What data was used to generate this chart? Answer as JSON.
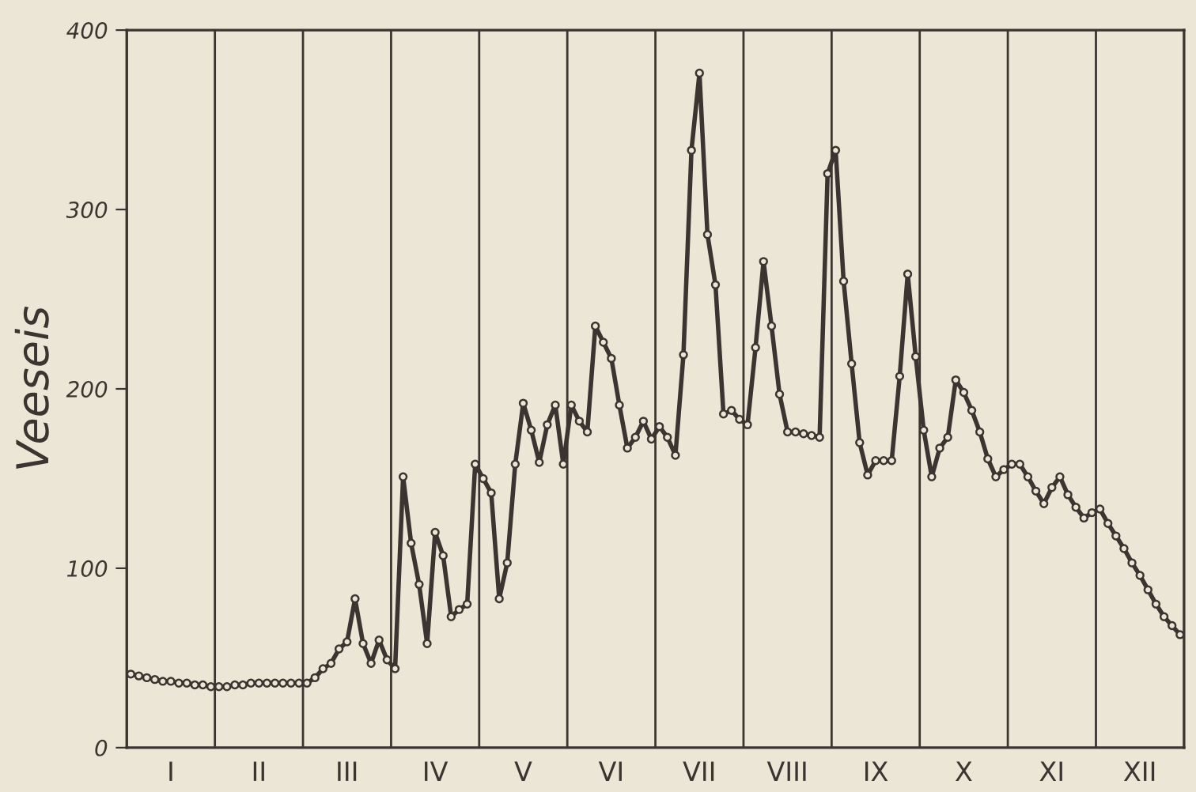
{
  "chart_data": {
    "type": "line",
    "ylabel": "Veeseis",
    "categories": [
      null,
      null,
      null,
      null,
      null,
      "I",
      null,
      null,
      null,
      null,
      null,
      null,
      null,
      null,
      null,
      null,
      "II",
      null,
      null,
      null,
      null,
      null,
      null,
      null,
      null,
      null,
      null,
      "III",
      null,
      null,
      null,
      null,
      null,
      null,
      null,
      null,
      null,
      null,
      "IV",
      null,
      null,
      null,
      null,
      null,
      null,
      null,
      null,
      null,
      null,
      "V",
      null,
      null,
      null,
      null,
      null,
      null,
      null,
      null,
      null,
      null,
      "VI",
      null,
      null,
      null,
      null,
      null,
      null,
      null,
      null,
      null,
      null,
      "VII",
      null,
      null,
      null,
      null,
      null,
      null,
      null,
      null,
      null,
      null,
      "VIII",
      null,
      null,
      null,
      null,
      null,
      null,
      null,
      null,
      null,
      null,
      "IX",
      null,
      null,
      null,
      null,
      null,
      null,
      null,
      null,
      null,
      null,
      "X",
      null,
      null,
      null,
      null,
      null,
      null,
      null,
      null,
      null,
      null,
      "XI",
      null,
      null,
      null,
      null,
      null,
      null,
      null,
      null,
      null,
      null,
      "XII",
      null,
      null,
      null,
      null,
      null
    ],
    "series": [
      {
        "color": "#3a3530",
        "values": [
          41,
          40,
          39,
          38,
          37,
          37,
          36,
          36,
          35,
          35,
          34,
          34,
          34,
          35,
          35,
          36,
          36,
          36,
          36,
          36,
          36,
          36,
          36,
          39,
          44,
          47,
          55,
          59,
          83,
          58,
          47,
          60,
          49,
          44,
          151,
          114,
          91,
          58,
          120,
          107,
          73,
          77,
          80,
          158,
          150,
          142,
          83,
          103,
          158,
          192,
          177,
          159,
          180,
          191,
          158,
          191,
          182,
          176,
          235,
          226,
          217,
          191,
          167,
          173,
          182,
          172,
          179,
          173,
          163,
          219,
          333,
          376,
          286,
          258,
          186,
          188,
          183,
          180,
          223,
          271,
          235,
          197,
          176,
          176,
          175,
          174,
          173,
          320,
          333,
          260,
          214,
          170,
          152,
          160,
          160,
          160,
          207,
          264,
          218,
          177,
          151,
          167,
          173,
          205,
          198,
          188,
          176,
          161,
          151,
          155,
          158,
          158,
          151,
          143,
          136,
          145,
          151,
          141,
          134,
          128,
          131,
          133,
          125,
          118,
          111,
          103,
          96,
          88,
          80,
          73,
          68,
          63
        ]
      }
    ],
    "ylim": [
      0,
      400
    ],
    "yticks": [
      0,
      100,
      200,
      300,
      400
    ],
    "marker": "circle",
    "line_style": "solid",
    "grid": false,
    "legend": false
  }
}
